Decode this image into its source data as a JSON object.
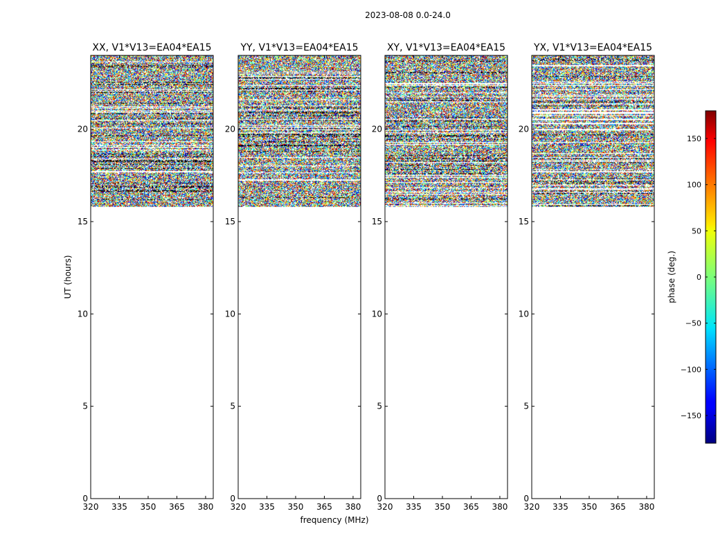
{
  "figure_title": "2023-08-08 0.0-24.0",
  "colorbar_label": "phase (deg.)",
  "chart_data": {
    "type": "heatmap",
    "title": "2023-08-08 0.0-24.0",
    "xlabel": "frequency (MHz)",
    "ylabel": "UT (hours)",
    "xlim": [
      320,
      384
    ],
    "ylim": [
      0,
      24
    ],
    "x_ticks": [
      320,
      335,
      350,
      365,
      380
    ],
    "y_ticks": [
      0,
      5,
      10,
      15,
      20
    ],
    "data_time_range": [
      15.8,
      24.0
    ],
    "panels": [
      {
        "name": "xx",
        "title": "XX, V1*V13=EA04*EA15",
        "ylabel": "UT (hours)",
        "xlabel": ""
      },
      {
        "name": "yy",
        "title": "YY, V1*V13=EA04*EA15",
        "ylabel": "",
        "xlabel": "frequency (MHz)"
      },
      {
        "name": "xy",
        "title": "XY, V1*V13=EA04*EA15",
        "ylabel": "",
        "xlabel": ""
      },
      {
        "name": "yx",
        "title": "YX, V1*V13=EA04*EA15",
        "ylabel": "",
        "xlabel": ""
      }
    ],
    "colorbar": {
      "label": "phase (deg.)",
      "range": [
        -180,
        180
      ],
      "ticks": [
        150,
        100,
        50,
        0,
        -50,
        -100,
        -150
      ],
      "colormap": "jet"
    }
  }
}
